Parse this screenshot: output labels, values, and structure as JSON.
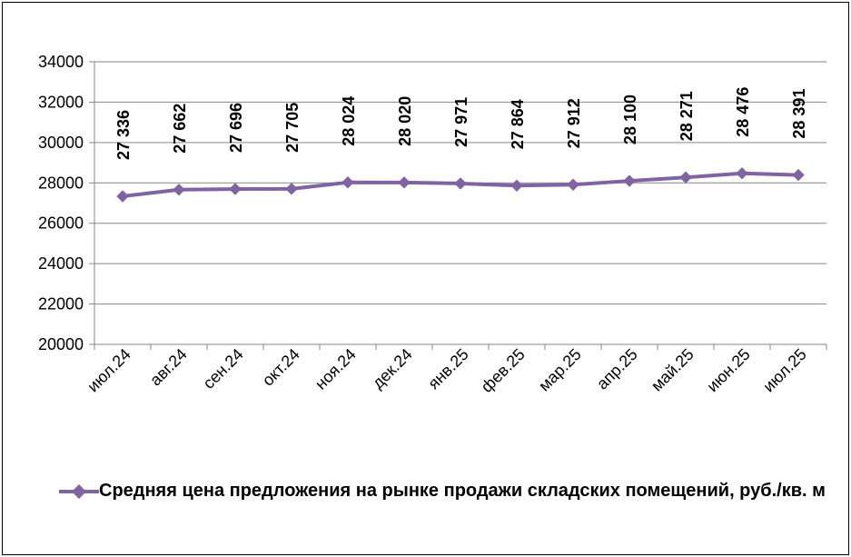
{
  "chart_data": {
    "type": "line",
    "categories": [
      "июл.24",
      "авг.24",
      "сен.24",
      "окт.24",
      "ноя.24",
      "дек.24",
      "янв.25",
      "фев.25",
      "мар.25",
      "апр.25",
      "май.25",
      "июн.25",
      "июл.25"
    ],
    "series": [
      {
        "name": "Средняя цена предложения на рынке продажи  складских помещений, руб./кв. м",
        "values": [
          27336,
          27662,
          27696,
          27705,
          28024,
          28020,
          27971,
          27864,
          27912,
          28100,
          28271,
          28476,
          28391
        ],
        "data_labels": [
          "27 336",
          "27 662",
          "27 696",
          "27 705",
          "28 024",
          "28 020",
          "27 971",
          "27 864",
          "27 912",
          "28 100",
          "28 271",
          "28 476",
          "28 391"
        ],
        "color": "#7F63A2",
        "marker": "diamond"
      }
    ],
    "ylim": [
      20000,
      34000
    ],
    "yticks": [
      20000,
      22000,
      24000,
      26000,
      28000,
      30000,
      32000,
      34000
    ],
    "ytick_labels": [
      "20000",
      "22000",
      "24000",
      "26000",
      "28000",
      "30000",
      "32000",
      "34000"
    ],
    "grid": true,
    "legend_position": "bottom",
    "title": "",
    "xlabel": "",
    "ylabel": ""
  }
}
